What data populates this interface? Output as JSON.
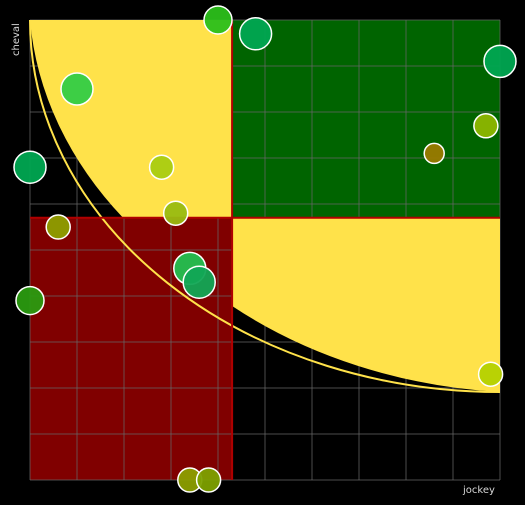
{
  "colors": {
    "background": "#000000",
    "grid": "#666666",
    "quad_top_right": "#006400",
    "quad_bottom_left": "#800000",
    "highlight_zone": "#FFE24A",
    "divider": "#B00000",
    "point_stroke": "#FFFFFF"
  },
  "chart_data": {
    "type": "scatter",
    "title": "",
    "xlabel": "jockey",
    "ylabel": "cheval",
    "xlim": [
      0,
      10
    ],
    "ylim": [
      0,
      10
    ],
    "grid": true,
    "quadrant_split": {
      "x": 4.3,
      "y": 5.7
    },
    "points": [
      {
        "x": 4.0,
        "y": 10.0,
        "size": 14,
        "color": "#2BBF1A"
      },
      {
        "x": 4.8,
        "y": 9.7,
        "size": 16,
        "color": "#00A651"
      },
      {
        "x": 10.0,
        "y": 9.1,
        "size": 16,
        "color": "#00A651"
      },
      {
        "x": 1.0,
        "y": 8.5,
        "size": 16,
        "color": "#33CC44"
      },
      {
        "x": 9.7,
        "y": 7.7,
        "size": 12,
        "color": "#8DB600"
      },
      {
        "x": 8.6,
        "y": 7.1,
        "size": 10,
        "color": "#9A7A00"
      },
      {
        "x": 0.0,
        "y": 6.8,
        "size": 16,
        "color": "#00A651"
      },
      {
        "x": 2.8,
        "y": 6.8,
        "size": 12,
        "color": "#AACC11"
      },
      {
        "x": 3.1,
        "y": 5.8,
        "size": 12,
        "color": "#99BB11"
      },
      {
        "x": 0.6,
        "y": 5.5,
        "size": 12,
        "color": "#8D9E00"
      },
      {
        "x": 3.4,
        "y": 4.6,
        "size": 16,
        "color": "#22C050"
      },
      {
        "x": 3.6,
        "y": 4.3,
        "size": 16,
        "color": "#11A655"
      },
      {
        "x": 0.0,
        "y": 3.9,
        "size": 14,
        "color": "#2A9A10"
      },
      {
        "x": 9.8,
        "y": 2.3,
        "size": 12,
        "color": "#B5D100"
      },
      {
        "x": 3.4,
        "y": 0.0,
        "size": 12,
        "color": "#8C9E00"
      },
      {
        "x": 3.8,
        "y": 0.0,
        "size": 12,
        "color": "#7DA000"
      }
    ]
  }
}
